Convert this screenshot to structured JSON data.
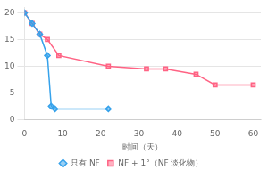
{
  "chart_data": {
    "type": "line",
    "xlabel": "时间（天）",
    "xlim": [
      0,
      62
    ],
    "xticks": [
      0,
      10,
      20,
      30,
      40,
      50,
      60
    ],
    "ylim": [
      0,
      21
    ],
    "yticks": [
      0,
      5,
      10,
      15,
      20
    ],
    "grid": "y",
    "legend": "bottom",
    "series": [
      {
        "name": "只有 NF",
        "marker": "diamond",
        "x": [
          0,
          2,
          4,
          6,
          7,
          8,
          22
        ],
        "values": [
          20,
          18,
          16,
          12,
          2.5,
          2,
          2
        ]
      },
      {
        "name": "NF + 1°（NF 淡化物）",
        "marker": "square",
        "x": [
          0,
          2,
          4,
          6,
          9,
          22,
          32,
          37,
          45,
          50,
          60
        ],
        "values": [
          20,
          18,
          16,
          15,
          12,
          10,
          9.5,
          9.5,
          8.5,
          6.5,
          6.5
        ]
      }
    ]
  }
}
